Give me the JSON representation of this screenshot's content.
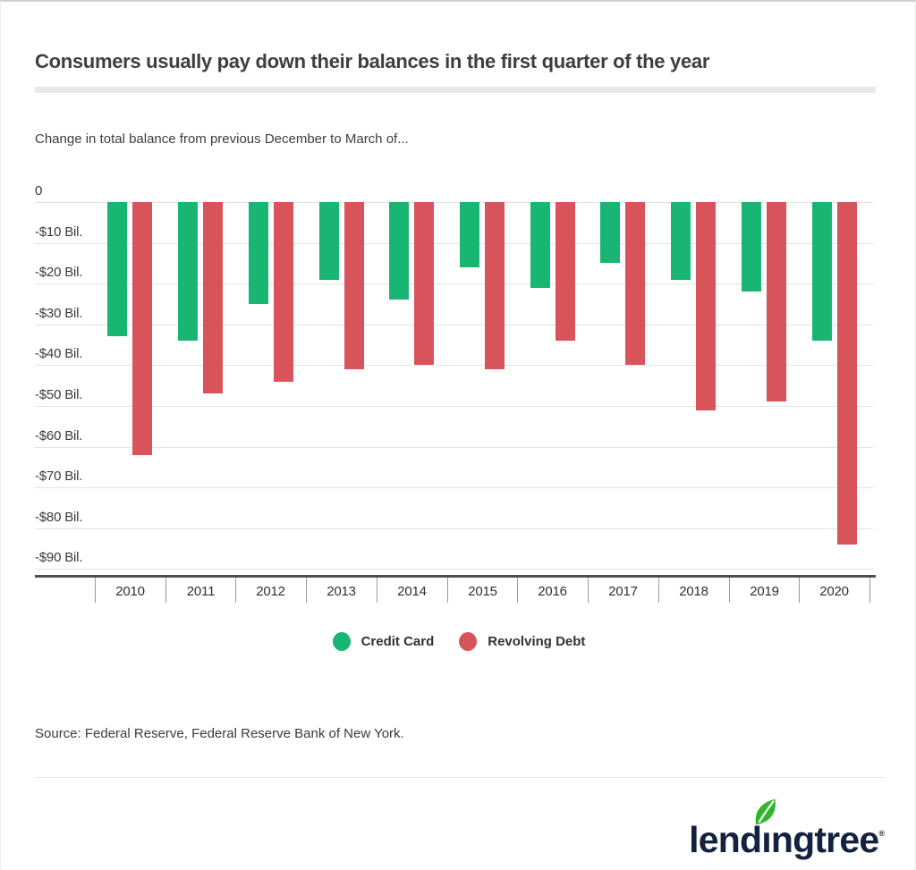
{
  "header": {
    "title": "Consumers usually pay down their balances in the first quarter of the year"
  },
  "chart": {
    "subtitle": "Change in total balance from previous December to March of..."
  },
  "chart_data": {
    "type": "bar",
    "title": "Consumers usually pay down their balances in the first quarter of the year",
    "subtitle": "Change in total balance from previous December to March of...",
    "categories": [
      "2010",
      "2011",
      "2012",
      "2013",
      "2014",
      "2015",
      "2016",
      "2017",
      "2018",
      "2019",
      "2020"
    ],
    "series": [
      {
        "name": "Credit Card",
        "color": "#18b573",
        "values": [
          -33,
          -34,
          -25,
          -19,
          -24,
          -16,
          -21,
          -15,
          -19,
          -22,
          -34
        ]
      },
      {
        "name": "Revolving Debt",
        "color": "#d9545a",
        "values": [
          -62,
          -47,
          -44,
          -41,
          -40,
          -41,
          -34,
          -40,
          -51,
          -49,
          -84
        ]
      }
    ],
    "unit_label": "Bil.",
    "yticks": [
      "0",
      "-$10 Bil.",
      "-$20 Bil.",
      "-$30 Bil.",
      "-$40 Bil.",
      "-$50 Bil.",
      "-$60 Bil.",
      "-$70 Bil.",
      "-$80 Bil.",
      "-$90 Bil."
    ],
    "ylim": [
      -90,
      0
    ],
    "grid": true,
    "legend_position": "bottom"
  },
  "footer": {
    "source": "Source: Federal Reserve, Federal Reserve Bank of New York."
  },
  "logo": {
    "part1": "lend",
    "dotless_i": "ı",
    "part2": "ngtree",
    "registered": "®",
    "brand": "lendingtree",
    "leaf_color": "#2eb72e",
    "text_color": "#12223f"
  }
}
